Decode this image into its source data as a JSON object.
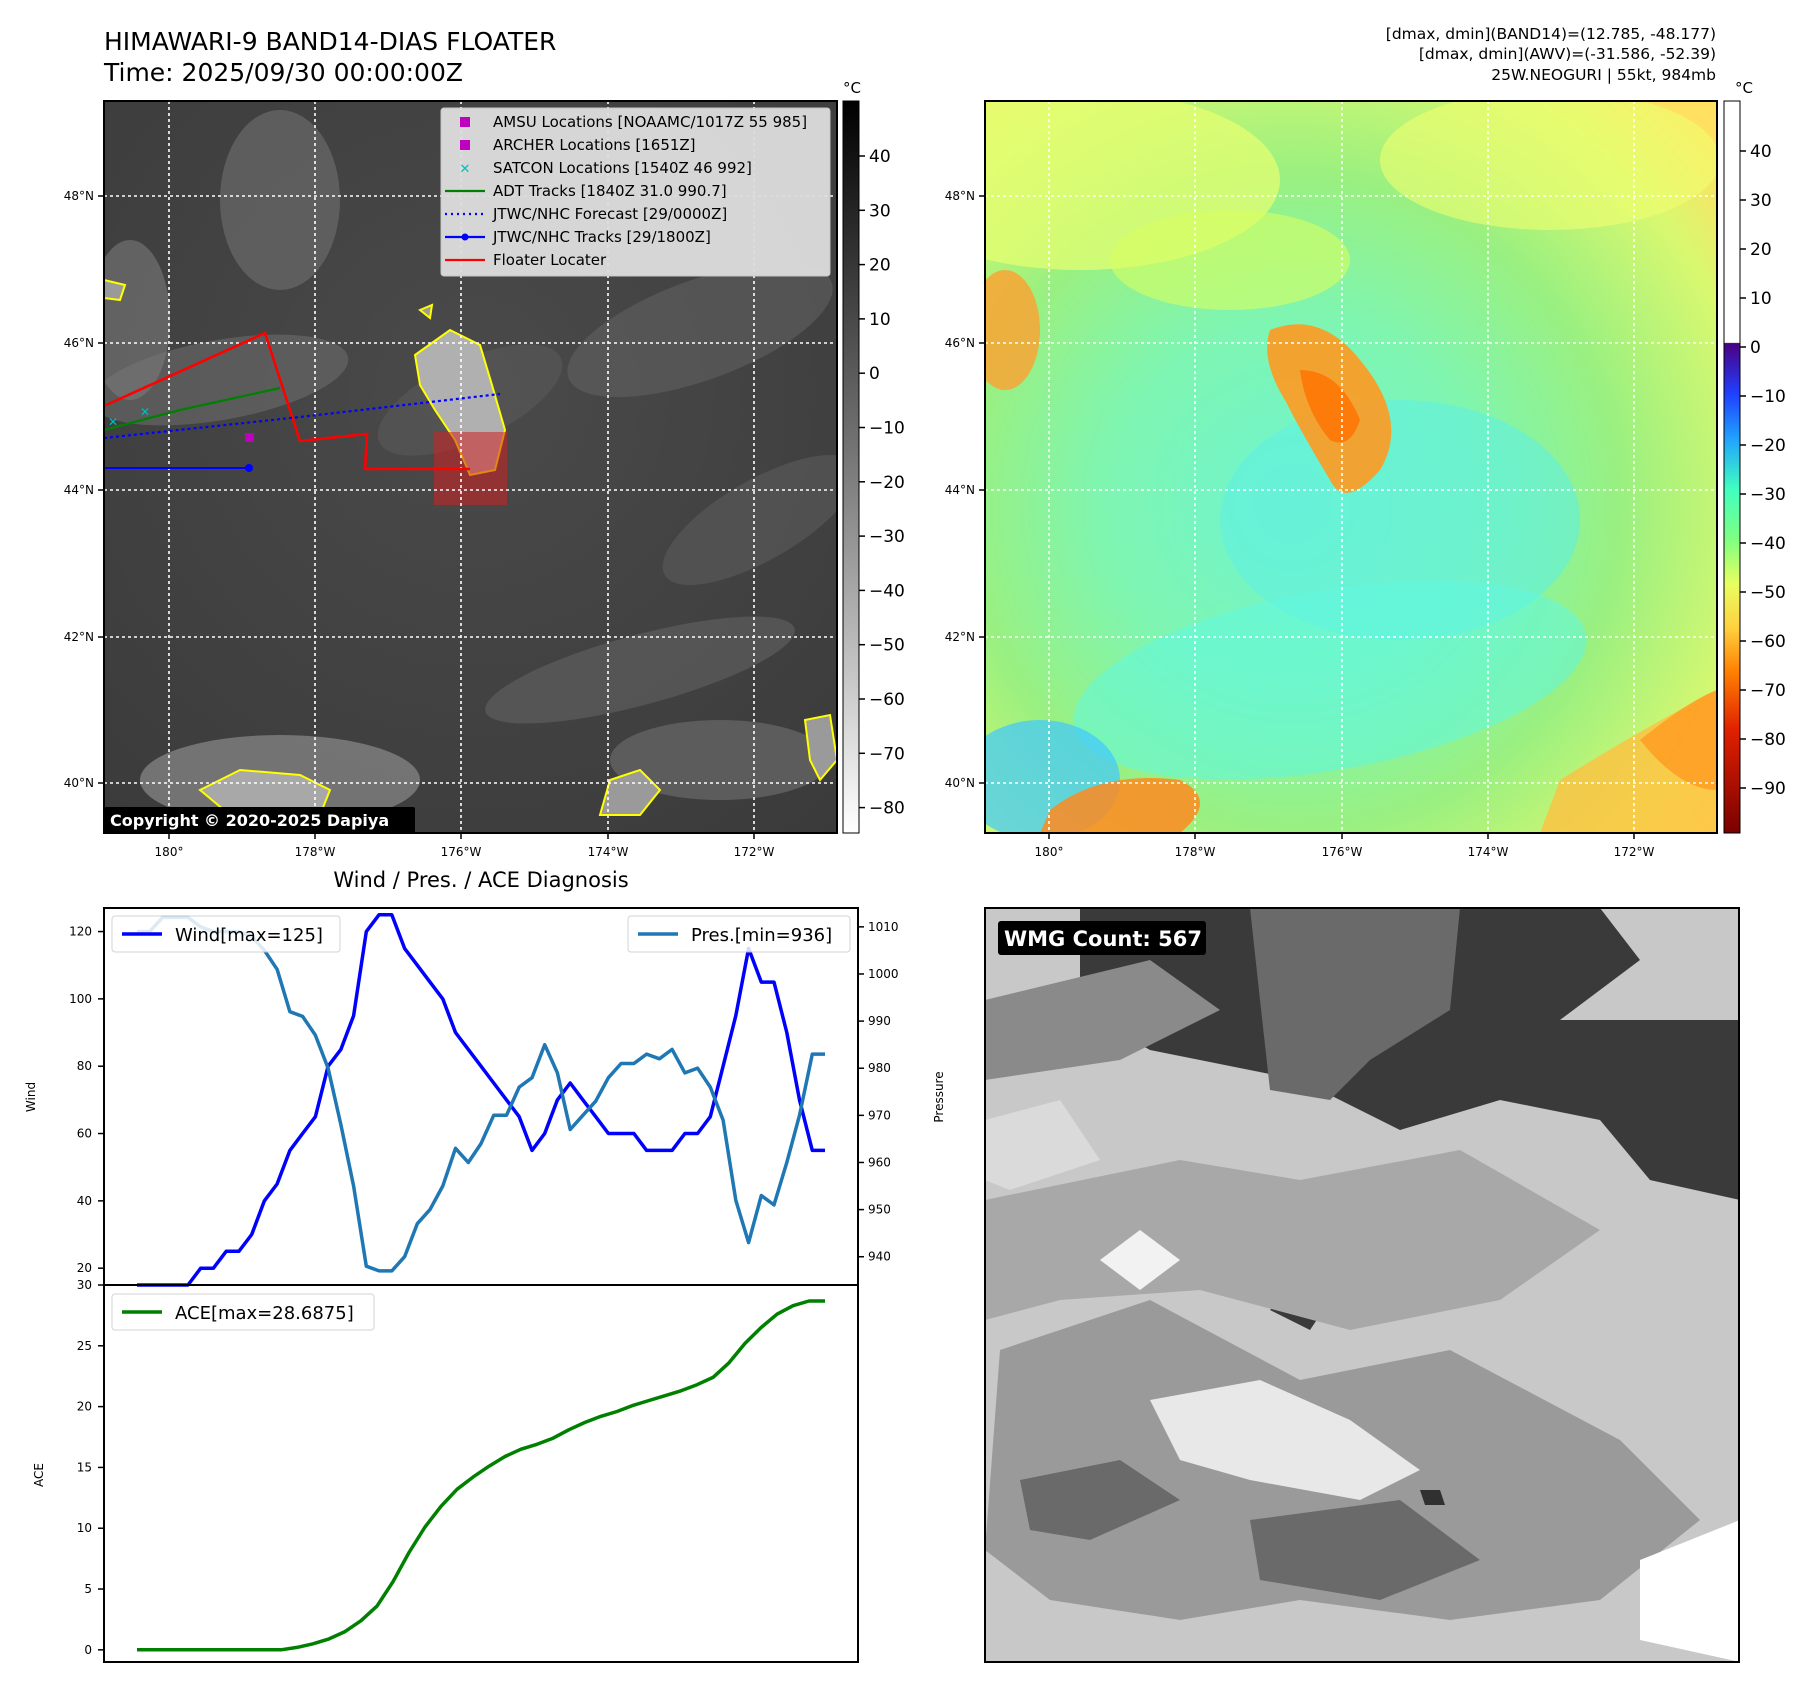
{
  "header": {
    "title": "HIMAWARI-9 BAND14-DIAS FLOATER",
    "time": "Time: 2025/09/30 00:00:00Z",
    "info_line1": "[dmax, dmin](BAND14)=(12.785, -48.177)",
    "info_line2": "[dmax, dmin](AWV)=(-31.586, -52.39)",
    "info_line3": "25W.NEOGURI | 55kt, 984mb"
  },
  "ir_panel": {
    "unit": "°C",
    "colorbar_ticks": [
      "40",
      "30",
      "20",
      "10",
      "0",
      "−10",
      "−20",
      "−30",
      "−40",
      "−50",
      "−60",
      "−70",
      "−80"
    ],
    "lat_labels": [
      "48°N",
      "46°N",
      "44°N",
      "42°N",
      "40°N"
    ],
    "lon_labels": [
      "180°",
      "178°W",
      "176°W",
      "174°W",
      "172°W"
    ],
    "copyright": "Copyright © 2020-2025 Dapiya",
    "legend": [
      {
        "label": "AMSU Locations [NOAAMC/1017Z 55 985]",
        "color": "#bf00bf",
        "kind": "square"
      },
      {
        "label": "ARCHER Locations [1651Z]",
        "color": "#bf00bf",
        "kind": "square"
      },
      {
        "label": "SATCON Locations [1540Z 46 992]",
        "color": "#00bfbf",
        "kind": "x"
      },
      {
        "label": "ADT Tracks [1840Z 31.0 990.7]",
        "color": "#008000",
        "kind": "line"
      },
      {
        "label": "JTWC/NHC Forecast [29/0000Z]",
        "color": "#0000ff",
        "kind": "dotted"
      },
      {
        "label": "JTWC/NHC Tracks [29/1800Z]",
        "color": "#0000ff",
        "kind": "line-dot"
      },
      {
        "label": "Floater Locater",
        "color": "#ff0000",
        "kind": "line"
      }
    ]
  },
  "awv_panel": {
    "unit": "°C",
    "colorbar_ticks": [
      "40",
      "30",
      "20",
      "10",
      "0",
      "−10",
      "−20",
      "−30",
      "−40",
      "−50",
      "−60",
      "−70",
      "−80",
      "−90"
    ],
    "lat_labels": [
      "48°N",
      "46°N",
      "44°N",
      "42°N",
      "40°N"
    ],
    "lon_labels": [
      "180°",
      "178°W",
      "176°W",
      "174°W",
      "172°W"
    ]
  },
  "diag_panel": {
    "title": "Wind / Pres. / ACE Diagnosis",
    "wind_axis_label": "Wind",
    "pressure_axis_label": "Pressure",
    "ace_axis_label": "ACE",
    "wind_legend": "Wind[max=125]",
    "pres_legend": "Pres.[min=936]",
    "ace_legend": "ACE[max=28.6875]",
    "wind_color": "#0000ff",
    "pres_color": "#1f77b4",
    "ace_color": "#008000"
  },
  "wmg_panel": {
    "label": "WMG Count: 567"
  },
  "chart_data": [
    {
      "type": "line",
      "title": "Wind / Pres. / ACE Diagnosis",
      "ylabel": "Wind",
      "ylim": [
        15,
        127
      ],
      "yticks": [
        20,
        40,
        60,
        80,
        100,
        120
      ],
      "series": [
        {
          "name": "Wind[max=125]",
          "values": [
            15,
            15,
            15,
            15,
            15,
            20,
            20,
            25,
            25,
            30,
            40,
            45,
            55,
            60,
            65,
            80,
            85,
            95,
            120,
            125,
            125,
            115,
            110,
            105,
            100,
            90,
            85,
            80,
            75,
            70,
            65,
            55,
            60,
            70,
            75,
            70,
            65,
            60,
            60,
            60,
            55,
            55,
            55,
            60,
            60,
            65,
            80,
            95,
            115,
            105,
            105,
            90,
            70,
            55,
            55
          ]
        }
      ]
    },
    {
      "type": "line",
      "ylabel": "Pressure",
      "ylim": [
        934,
        1014
      ],
      "yticks": [
        940,
        950,
        960,
        970,
        980,
        990,
        1000,
        1010
      ],
      "series": [
        {
          "name": "Pres.[min=936]",
          "values": [
            1009,
            1009,
            1012,
            1012,
            1012,
            1010,
            1009,
            1009,
            1009,
            1008,
            1005,
            1001,
            992,
            991,
            987,
            980,
            968,
            955,
            938,
            937,
            937,
            940,
            947,
            950,
            955,
            963,
            960,
            964,
            970,
            970,
            976,
            978,
            985,
            979,
            967,
            970,
            973,
            978,
            981,
            981,
            983,
            982,
            984,
            979,
            980,
            976,
            969,
            952,
            943,
            953,
            951,
            960,
            970,
            983,
            983
          ]
        }
      ]
    },
    {
      "type": "line",
      "ylabel": "ACE",
      "ylim": [
        -1,
        30
      ],
      "yticks": [
        0,
        5,
        10,
        15,
        20,
        25,
        30
      ],
      "series": [
        {
          "name": "ACE[max=28.6875]",
          "values": [
            0,
            0,
            0,
            0,
            0,
            0,
            0,
            0,
            0,
            0,
            0.2,
            0.5,
            0.9,
            1.5,
            2.4,
            3.6,
            5.6,
            8.0,
            10.1,
            11.8,
            13.2,
            14.2,
            15.1,
            15.9,
            16.5,
            16.9,
            17.4,
            18.1,
            18.7,
            19.2,
            19.6,
            20.1,
            20.5,
            20.9,
            21.3,
            21.8,
            22.4,
            23.6,
            25.2,
            26.5,
            27.6,
            28.3,
            28.6875,
            28.6875
          ]
        }
      ]
    }
  ]
}
